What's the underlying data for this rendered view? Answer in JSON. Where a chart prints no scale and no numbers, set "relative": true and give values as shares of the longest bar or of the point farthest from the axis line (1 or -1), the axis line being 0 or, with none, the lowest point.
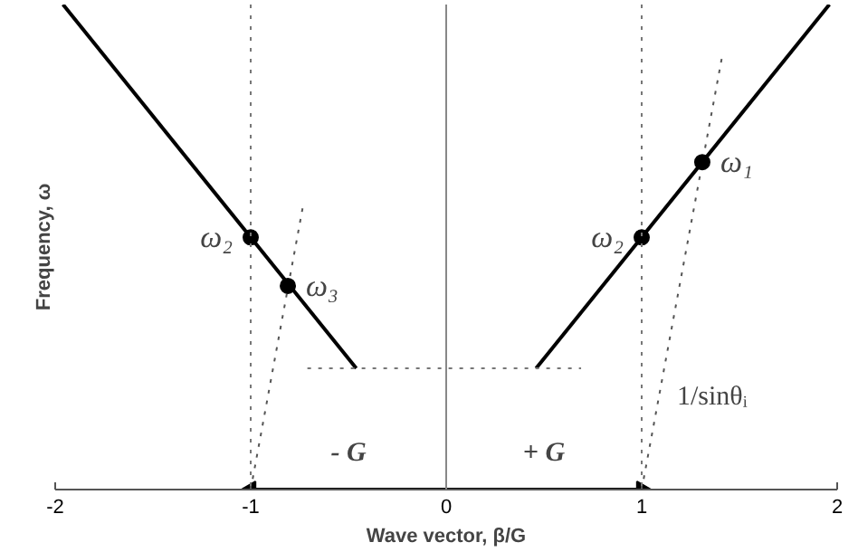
{
  "chart_data": {
    "type": "line",
    "relative": true,
    "xlabel": "Wave vector, β/G",
    "ylabel": "Frequency, ω",
    "xlim": [
      -2,
      2
    ],
    "xticks": [
      -2,
      -1,
      0,
      1,
      2
    ],
    "grid": false,
    "tick_labels": "x",
    "series": [
      {
        "color": "#000000",
        "x": [
          -1.96,
          -0.46
        ],
        "values": [
          1.0,
          0.25
        ],
        "line_style": "solid"
      },
      {
        "color": "#000000",
        "x": [
          0.46,
          1.96
        ],
        "values": [
          0.25,
          1.0
        ],
        "line_style": "solid"
      },
      {
        "color": "#555555",
        "x": [
          -1,
          -0.73
        ],
        "values": [
          0,
          0.59
        ],
        "line_style": "dotted"
      },
      {
        "color": "#555555",
        "x": [
          1,
          1.41
        ],
        "values": [
          0,
          0.89
        ],
        "line_style": "dotted"
      },
      {
        "color": "#777777",
        "x": [
          -0.71,
          0.69
        ],
        "values": [
          0.25,
          0.25
        ],
        "line_style": "dotted"
      },
      {
        "color": "#000000",
        "x": [
          -1,
          0,
          1
        ],
        "values": [
          0,
          0,
          0
        ],
        "line_style": "solid",
        "marker": "triangle"
      },
      {
        "type": "scatter",
        "color": "#000000",
        "x": [
          -1,
          -0.81,
          1,
          1.31
        ],
        "values": [
          0.52,
          0.42,
          0.52,
          0.675
        ],
        "marker": "circle"
      }
    ],
    "ref_lines": [
      {
        "axis": "x",
        "value": -1,
        "line_style": "dotted",
        "color": "#777777"
      },
      {
        "axis": "x",
        "value": 1,
        "line_style": "dotted",
        "color": "#777777"
      },
      {
        "axis": "x",
        "value": 0,
        "line_style": "solid",
        "color": "#888888"
      }
    ],
    "annotations": [
      {
        "text": "ω₂",
        "x": -1,
        "y": 0.52
      },
      {
        "text": "ω₃",
        "x": -0.81,
        "y": 0.42
      },
      {
        "text": "ω₂",
        "x": 1,
        "y": 0.52
      },
      {
        "text": "ω₁",
        "x": 1.31,
        "y": 0.675
      },
      {
        "text": "- G",
        "x": -0.5,
        "y": 0
      },
      {
        "text": "+ G",
        "x": 0.5,
        "y": 0
      },
      "1/sinθᵢ"
    ]
  }
}
